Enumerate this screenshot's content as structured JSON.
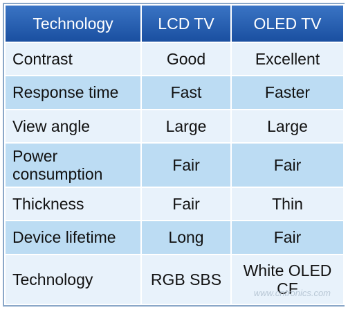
{
  "table": {
    "headers": [
      "Technology",
      "LCD TV",
      "OLED TV"
    ],
    "rows": [
      {
        "label": "Contrast",
        "lcd": "Good",
        "oled": "Excellent"
      },
      {
        "label": "Response time",
        "lcd": "Fast",
        "oled": "Faster"
      },
      {
        "label": "View angle",
        "lcd": "Large",
        "oled": "Large"
      },
      {
        "label": "Power\nconsumption",
        "lcd": "Fair",
        "oled": "Fair"
      },
      {
        "label": "Thickness",
        "lcd": "Fair",
        "oled": "Thin"
      },
      {
        "label": "Device lifetime",
        "lcd": "Long",
        "oled": "Fair"
      },
      {
        "label": "Technology",
        "lcd": "RGB SBS",
        "oled": "White OLED\nCF"
      }
    ]
  },
  "watermark": "www.cntronics.com",
  "colors": {
    "header": "#2a62b4",
    "row_light": "#e8f2fb",
    "row_dark": "#bcdcf3",
    "border": "#8aa7c8"
  }
}
